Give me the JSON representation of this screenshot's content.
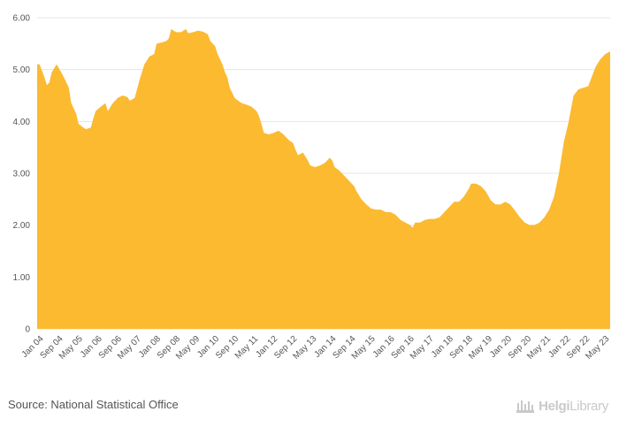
{
  "chart_data": {
    "type": "area",
    "title": "",
    "xlabel": "",
    "ylabel": "",
    "ylim": [
      0,
      6
    ],
    "y_ticks": [
      "0",
      "1.00",
      "2.00",
      "3.00",
      "4.00",
      "5.00",
      "6.00"
    ],
    "x_tick_labels": [
      "Jan 04",
      "Sep 04",
      "May 05",
      "Jan 06",
      "Sep 06",
      "May 07",
      "Jan 08",
      "Sep 08",
      "May 09",
      "Jan 10",
      "Sep 10",
      "May 11",
      "Jan 12",
      "Sep 12",
      "May 13",
      "Jan 14",
      "Sep 14",
      "May 15",
      "Jan 16",
      "Sep 16",
      "May 17",
      "Jan 18",
      "Sep 18",
      "May 19",
      "Jan 20",
      "Sep 20",
      "May 21",
      "Jan 22",
      "Sep 22",
      "May 23"
    ],
    "x_start": "2004-01",
    "x_end": "2023-08",
    "grid": "horizontal",
    "fill_color": "#fbba30",
    "series": [
      {
        "name": "",
        "points": [
          [
            "2004-01",
            5.1
          ],
          [
            "2004-02",
            5.1
          ],
          [
            "2004-04",
            4.85
          ],
          [
            "2004-05",
            4.7
          ],
          [
            "2004-06",
            4.75
          ],
          [
            "2004-07",
            4.95
          ],
          [
            "2004-09",
            5.1
          ],
          [
            "2004-10",
            5.02
          ],
          [
            "2004-12",
            4.85
          ],
          [
            "2005-02",
            4.65
          ],
          [
            "2005-03",
            4.35
          ],
          [
            "2005-05",
            4.15
          ],
          [
            "2005-06",
            3.95
          ],
          [
            "2005-08",
            3.88
          ],
          [
            "2005-09",
            3.85
          ],
          [
            "2005-11",
            3.88
          ],
          [
            "2005-12",
            4.05
          ],
          [
            "2006-01",
            4.2
          ],
          [
            "2006-03",
            4.28
          ],
          [
            "2006-05",
            4.35
          ],
          [
            "2006-06",
            4.2
          ],
          [
            "2006-08",
            4.35
          ],
          [
            "2006-10",
            4.45
          ],
          [
            "2006-12",
            4.5
          ],
          [
            "2007-02",
            4.47
          ],
          [
            "2007-03",
            4.4
          ],
          [
            "2007-05",
            4.45
          ],
          [
            "2007-07",
            4.8
          ],
          [
            "2007-09",
            5.1
          ],
          [
            "2007-11",
            5.25
          ],
          [
            "2008-01",
            5.3
          ],
          [
            "2008-02",
            5.5
          ],
          [
            "2008-04",
            5.52
          ],
          [
            "2008-06",
            5.55
          ],
          [
            "2008-07",
            5.6
          ],
          [
            "2008-08",
            5.78
          ],
          [
            "2008-10",
            5.72
          ],
          [
            "2008-12",
            5.72
          ],
          [
            "2009-02",
            5.78
          ],
          [
            "2009-03",
            5.7
          ],
          [
            "2009-05",
            5.72
          ],
          [
            "2009-07",
            5.75
          ],
          [
            "2009-09",
            5.73
          ],
          [
            "2009-11",
            5.68
          ],
          [
            "2009-12",
            5.55
          ],
          [
            "2010-02",
            5.45
          ],
          [
            "2010-03",
            5.3
          ],
          [
            "2010-05",
            5.1
          ],
          [
            "2010-06",
            4.95
          ],
          [
            "2010-07",
            4.85
          ],
          [
            "2010-08",
            4.65
          ],
          [
            "2010-09",
            4.55
          ],
          [
            "2010-10",
            4.45
          ],
          [
            "2010-12",
            4.38
          ],
          [
            "2011-01",
            4.35
          ],
          [
            "2011-03",
            4.32
          ],
          [
            "2011-05",
            4.28
          ],
          [
            "2011-07",
            4.2
          ],
          [
            "2011-08",
            4.1
          ],
          [
            "2011-09",
            3.95
          ],
          [
            "2011-10",
            3.78
          ],
          [
            "2011-12",
            3.75
          ],
          [
            "2012-02",
            3.78
          ],
          [
            "2012-04",
            3.82
          ],
          [
            "2012-06",
            3.75
          ],
          [
            "2012-08",
            3.65
          ],
          [
            "2012-10",
            3.58
          ],
          [
            "2012-11",
            3.45
          ],
          [
            "2012-12",
            3.35
          ],
          [
            "2013-02",
            3.4
          ],
          [
            "2013-04",
            3.25
          ],
          [
            "2013-05",
            3.15
          ],
          [
            "2013-07",
            3.12
          ],
          [
            "2013-09",
            3.15
          ],
          [
            "2013-11",
            3.2
          ],
          [
            "2014-01",
            3.3
          ],
          [
            "2014-02",
            3.25
          ],
          [
            "2014-03",
            3.12
          ],
          [
            "2014-05",
            3.05
          ],
          [
            "2014-07",
            2.95
          ],
          [
            "2014-09",
            2.85
          ],
          [
            "2014-11",
            2.75
          ],
          [
            "2014-12",
            2.65
          ],
          [
            "2015-02",
            2.5
          ],
          [
            "2015-04",
            2.4
          ],
          [
            "2015-06",
            2.32
          ],
          [
            "2015-08",
            2.3
          ],
          [
            "2015-10",
            2.3
          ],
          [
            "2015-12",
            2.25
          ],
          [
            "2016-02",
            2.25
          ],
          [
            "2016-04",
            2.2
          ],
          [
            "2016-06",
            2.1
          ],
          [
            "2016-08",
            2.05
          ],
          [
            "2016-10",
            2.0
          ],
          [
            "2016-11",
            1.95
          ],
          [
            "2016-12",
            2.05
          ],
          [
            "2017-02",
            2.05
          ],
          [
            "2017-04",
            2.1
          ],
          [
            "2017-06",
            2.12
          ],
          [
            "2017-08",
            2.12
          ],
          [
            "2017-10",
            2.15
          ],
          [
            "2017-12",
            2.25
          ],
          [
            "2018-02",
            2.35
          ],
          [
            "2018-04",
            2.45
          ],
          [
            "2018-06",
            2.45
          ],
          [
            "2018-08",
            2.55
          ],
          [
            "2018-10",
            2.7
          ],
          [
            "2018-11",
            2.8
          ],
          [
            "2019-01",
            2.8
          ],
          [
            "2019-03",
            2.75
          ],
          [
            "2019-05",
            2.65
          ],
          [
            "2019-07",
            2.48
          ],
          [
            "2019-09",
            2.4
          ],
          [
            "2019-11",
            2.4
          ],
          [
            "2020-01",
            2.45
          ],
          [
            "2020-03",
            2.4
          ],
          [
            "2020-05",
            2.28
          ],
          [
            "2020-07",
            2.15
          ],
          [
            "2020-09",
            2.05
          ],
          [
            "2020-11",
            2.0
          ],
          [
            "2021-01",
            2.0
          ],
          [
            "2021-03",
            2.05
          ],
          [
            "2021-05",
            2.15
          ],
          [
            "2021-07",
            2.3
          ],
          [
            "2021-09",
            2.55
          ],
          [
            "2021-11",
            3.0
          ],
          [
            "2022-01",
            3.6
          ],
          [
            "2022-03",
            4.0
          ],
          [
            "2022-05",
            4.5
          ],
          [
            "2022-07",
            4.62
          ],
          [
            "2022-09",
            4.65
          ],
          [
            "2022-11",
            4.68
          ],
          [
            "2022-12",
            4.8
          ],
          [
            "2023-02",
            5.05
          ],
          [
            "2023-04",
            5.2
          ],
          [
            "2023-06",
            5.3
          ],
          [
            "2023-08",
            5.35
          ]
        ]
      }
    ]
  },
  "footer": {
    "source": "Source: National Statistical Office",
    "brand_bold": "Helgi",
    "brand_regular": "Library"
  },
  "colors": {
    "area_fill": "#fbba30",
    "grid": "#e6e6e6",
    "axis_text": "#555555",
    "brand": "#c9c9c9"
  }
}
